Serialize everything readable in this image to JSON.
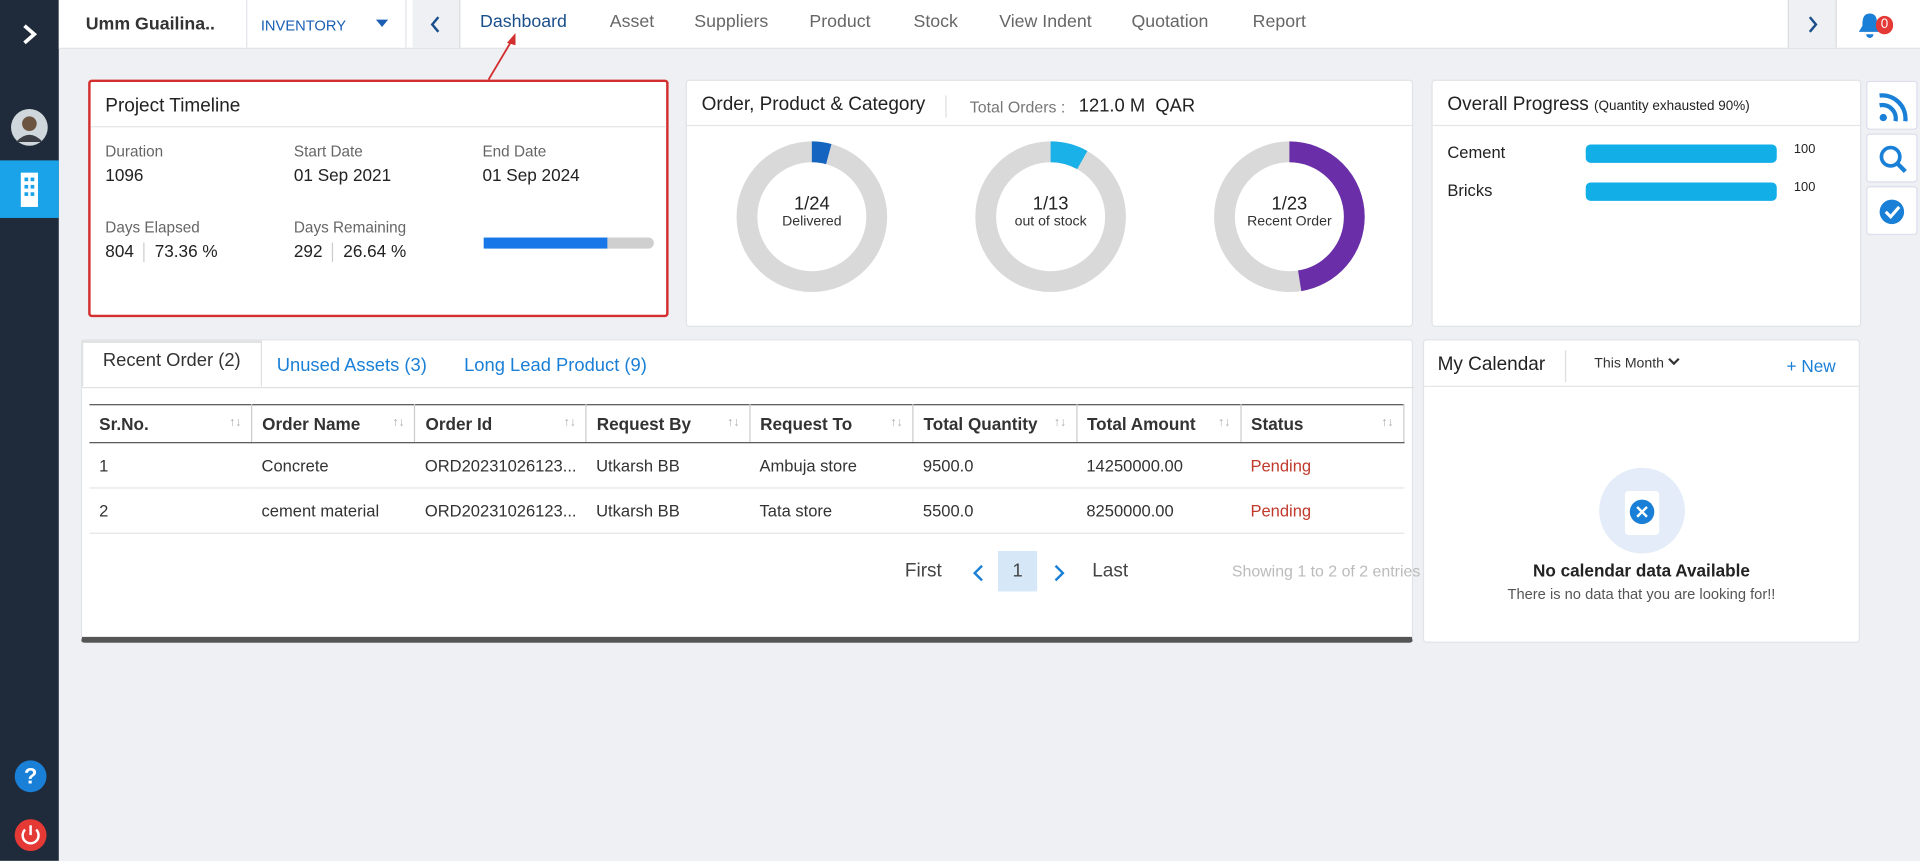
{
  "header": {
    "project": "Umm Guailina..",
    "module": "INVENTORY",
    "tabs": [
      "Dashboard",
      "Asset",
      "Suppliers",
      "Product",
      "Stock",
      "View Indent",
      "Quotation",
      "Report"
    ],
    "notifications": "0"
  },
  "project_timeline": {
    "title": "Project Timeline",
    "fields": [
      {
        "label": "Duration",
        "value": "1096"
      },
      {
        "label": "Start Date",
        "value": "01 Sep 2021"
      },
      {
        "label": "End Date",
        "value": "01 Sep 2024"
      }
    ],
    "days_elapsed": {
      "label": "Days Elapsed",
      "days": "804",
      "percent": "73.36 %"
    },
    "days_remaining": {
      "label": "Days Remaining",
      "days": "292",
      "percent": "26.64 %"
    }
  },
  "order_summary": {
    "title": "Order, Product & Category",
    "total_label": "Total Orders :",
    "total_value": "121.0 M",
    "currency": "QAR",
    "donuts": [
      {
        "count": "1/24",
        "caption": "Delivered"
      },
      {
        "count": "1/13",
        "caption": "out of stock"
      },
      {
        "count": "1/23",
        "caption": "Recent Order"
      }
    ]
  },
  "overall_progress": {
    "title": "Overall Progress",
    "note": "(Quantity exhausted 90%)",
    "items": [
      {
        "name": "Cement",
        "value": "100"
      },
      {
        "name": "Bricks",
        "value": "100"
      }
    ]
  },
  "orders": {
    "tabs": [
      "Recent Order (2)",
      "Unused Assets (3)",
      "Long Lead Product (9)"
    ],
    "columns": [
      "Sr.No.",
      "Order Name",
      "Order Id",
      "Request By",
      "Request To",
      "Total Quantity",
      "Total Amount",
      "Status"
    ],
    "rows": [
      [
        "1",
        "Concrete",
        "ORD20231026123...",
        "Utkarsh BB",
        "Ambuja store",
        "9500.0",
        "14250000.00",
        "Pending"
      ],
      [
        "2",
        "cement material",
        "ORD20231026123...",
        "Utkarsh BB",
        "Tata store",
        "5500.0",
        "8250000.00",
        "Pending"
      ]
    ],
    "pagination": {
      "first": "First",
      "page": "1",
      "last": "Last",
      "summary": "Showing 1 to 2 of 2 entries"
    }
  },
  "calendar": {
    "title": "My Calendar",
    "period": "This Month",
    "new": "+ New",
    "empty_title": "No calendar data Available",
    "empty_text": "There is no data that you are looking for!!"
  }
}
